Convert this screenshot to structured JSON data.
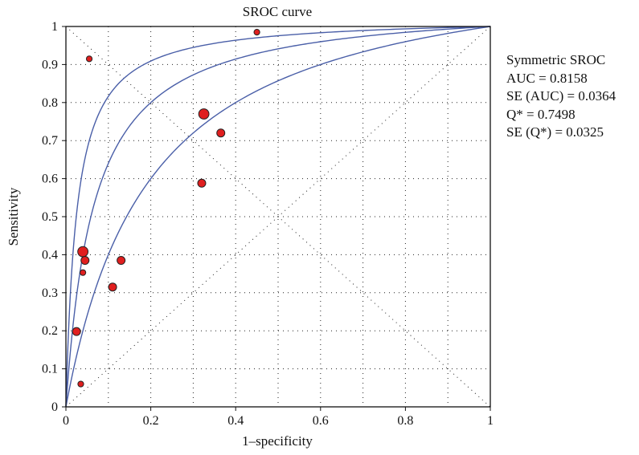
{
  "chart_data": {
    "type": "scatter",
    "title": "SROC curve",
    "xlabel": "1–specificity",
    "ylabel": "Sensitivity",
    "xlim": [
      0,
      1
    ],
    "ylim": [
      0,
      1
    ],
    "x_ticks": [
      "0",
      "0.2",
      "0.4",
      "0.6",
      "0.8",
      "1"
    ],
    "y_ticks": [
      "0",
      "0.1",
      "0.2",
      "0.3",
      "0.4",
      "0.5",
      "0.6",
      "0.7",
      "0.8",
      "0.9",
      "1"
    ],
    "grid": "dotted",
    "points": [
      {
        "x": 0.055,
        "y": 0.915,
        "size": "small"
      },
      {
        "x": 0.45,
        "y": 0.985,
        "size": "small"
      },
      {
        "x": 0.325,
        "y": 0.77,
        "size": "large"
      },
      {
        "x": 0.365,
        "y": 0.72,
        "size": "medium"
      },
      {
        "x": 0.32,
        "y": 0.588,
        "size": "medium"
      },
      {
        "x": 0.04,
        "y": 0.408,
        "size": "large"
      },
      {
        "x": 0.045,
        "y": 0.385,
        "size": "medium"
      },
      {
        "x": 0.13,
        "y": 0.385,
        "size": "medium"
      },
      {
        "x": 0.04,
        "y": 0.353,
        "size": "small"
      },
      {
        "x": 0.11,
        "y": 0.315,
        "size": "medium"
      },
      {
        "x": 0.025,
        "y": 0.198,
        "size": "medium"
      },
      {
        "x": 0.035,
        "y": 0.06,
        "size": "small"
      }
    ],
    "curves": [
      {
        "diagnostic_odds_ratio": 40
      },
      {
        "diagnostic_odds_ratio": 16
      },
      {
        "diagnostic_odds_ratio": 6
      }
    ],
    "reference_lines": [
      "diagonal y = x",
      "anti-diagonal y = 1 − x"
    ],
    "colors": {
      "curve": "#4a5fa8",
      "point_fill": "#e01f1f",
      "point_stroke": "#222222",
      "axis": "#111111",
      "grid": "#222222"
    },
    "stats": {
      "line1": "Symmetric SROC",
      "line2": "AUC = 0.8158",
      "line3": "SE (AUC) = 0.0364",
      "line4": "Q* = 0.7498",
      "line5": "SE (Q*) = 0.0325"
    }
  }
}
